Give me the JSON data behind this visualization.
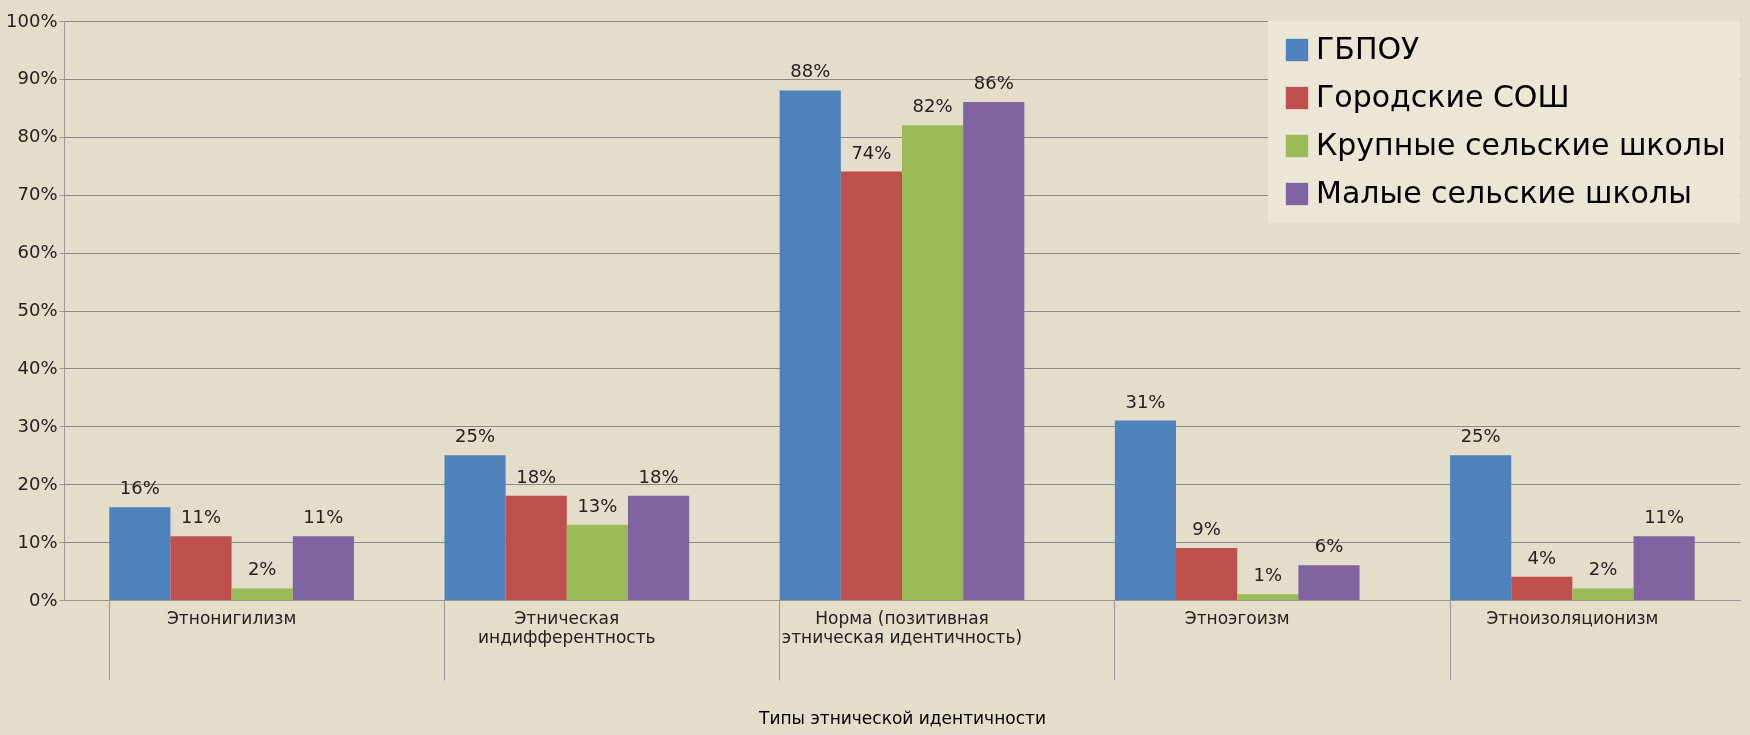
{
  "chart_data": {
    "type": "bar",
    "xlabel": "Типы этнической идентичности",
    "categories": [
      "Этнонигилизм",
      "Этническая\nиндифферентность",
      "Норма (позитивная\nэтническая идентичность)",
      "Этноэгоизм",
      "Этноизоляционизм"
    ],
    "series": [
      {
        "name": "ГБПОУ",
        "color": "#4f81bd",
        "values": [
          16,
          25,
          88,
          31,
          25
        ],
        "value_labels": [
          "16%",
          "25%",
          "88%",
          "31%",
          "25%"
        ]
      },
      {
        "name": "Городские СОШ",
        "color": "#c0504d",
        "values": [
          11,
          18,
          74,
          9,
          4
        ],
        "value_labels": [
          "11%",
          "18%",
          "74%",
          "9%",
          "4%"
        ]
      },
      {
        "name": "Крупные сельские школы",
        "color": "#9bbb59",
        "values": [
          2,
          13,
          82,
          1,
          2
        ],
        "value_labels": [
          "2%",
          "13%",
          "82%",
          "1%",
          "2%"
        ]
      },
      {
        "name": "Малые сельские школы",
        "color": "#8064a2",
        "values": [
          11,
          18,
          86,
          6,
          11
        ],
        "value_labels": [
          "11%",
          "18%",
          "86%",
          "6%",
          "11%"
        ]
      }
    ],
    "ylim": [
      0,
      100
    ],
    "yticks": [
      {
        "value": 0,
        "label": "0%"
      },
      {
        "value": 10,
        "label": "10%"
      },
      {
        "value": 20,
        "label": "20%"
      },
      {
        "value": 30,
        "label": "30%"
      },
      {
        "value": 40,
        "label": "40%"
      },
      {
        "value": 50,
        "label": "50%"
      },
      {
        "value": 60,
        "label": "60%"
      },
      {
        "value": 70,
        "label": "70%"
      },
      {
        "value": 80,
        "label": "80%"
      },
      {
        "value": 90,
        "label": "90%"
      },
      {
        "value": 100,
        "label": "100%"
      }
    ],
    "grid": "y",
    "legend": "top right"
  }
}
